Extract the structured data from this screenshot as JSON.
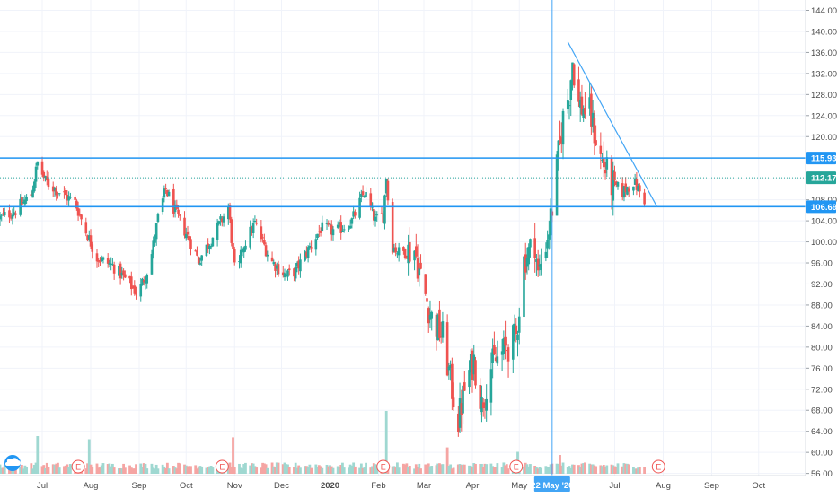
{
  "colors": {
    "up": "#26a69a",
    "down": "#ef5350",
    "volume_up": "#9fd8d1",
    "volume_down": "#f5a5a3",
    "level_line": "#2196f3",
    "trend_line": "#42a5f5",
    "crosshair": "#42a5f5",
    "last_price": "#26a69a",
    "axis_text": "#4a4a4a",
    "grid": "#f0f3fa",
    "earnings_marker": "#ef5350"
  },
  "chart_data": {
    "type": "candlestick",
    "y_axis": {
      "position": "right",
      "range": [
        54.5,
        146
      ],
      "ticks": [
        56,
        60,
        64,
        68,
        72,
        76,
        80,
        84,
        88,
        92,
        96,
        100,
        104,
        108,
        112,
        116,
        120,
        124,
        128,
        132,
        136,
        140,
        144
      ],
      "tick_labels": [
        "56.00",
        "60.00",
        "64.00",
        "68.00",
        "72.00",
        "76.00",
        "80.00",
        "84.00",
        "88.00",
        "92.00",
        "96.00",
        "100.00",
        "104.00",
        "108.00",
        "112.00",
        "116.00",
        "120.00",
        "124.00",
        "128.00",
        "132.00",
        "136.00",
        "140.00",
        "144.00"
      ]
    },
    "x_axis": {
      "range": [
        "2019-06-04",
        "2020-10-31"
      ],
      "ticks": [
        {
          "date": "2019-07-01",
          "label": "Jul"
        },
        {
          "date": "2019-08-01",
          "label": "Aug"
        },
        {
          "date": "2019-09-01",
          "label": "Sep"
        },
        {
          "date": "2019-10-01",
          "label": "Oct"
        },
        {
          "date": "2019-11-01",
          "label": "Nov"
        },
        {
          "date": "2019-12-01",
          "label": "Dec"
        },
        {
          "date": "2020-01-01",
          "label": "2020"
        },
        {
          "date": "2020-02-01",
          "label": "Feb"
        },
        {
          "date": "2020-03-01",
          "label": "Mar"
        },
        {
          "date": "2020-04-01",
          "label": "Apr"
        },
        {
          "date": "2020-05-01",
          "label": "May"
        },
        {
          "date": "2020-07-01",
          "label": "Jul"
        },
        {
          "date": "2020-08-01",
          "label": "Aug"
        },
        {
          "date": "2020-09-01",
          "label": "Sep"
        },
        {
          "date": "2020-10-01",
          "label": "Oct"
        }
      ]
    },
    "price_path": [
      [
        "2019-06-04",
        104.5
      ],
      [
        "2019-06-14",
        106.0
      ],
      [
        "2019-06-24",
        109.0
      ],
      [
        "2019-06-28",
        115.0
      ],
      [
        "2019-07-03",
        111.5
      ],
      [
        "2019-07-12",
        109.5
      ],
      [
        "2019-07-22",
        107.5
      ],
      [
        "2019-07-29",
        102.0
      ],
      [
        "2019-08-05",
        97.0
      ],
      [
        "2019-08-15",
        95.5
      ],
      [
        "2019-08-26",
        92.0
      ],
      [
        "2019-08-31",
        90.0
      ],
      [
        "2019-09-08",
        96.0
      ],
      [
        "2019-09-13",
        104.5
      ],
      [
        "2019-09-18",
        110.0
      ],
      [
        "2019-09-25",
        105.0
      ],
      [
        "2019-10-03",
        100.5
      ],
      [
        "2019-10-09",
        96.5
      ],
      [
        "2019-10-18",
        101.0
      ],
      [
        "2019-10-28",
        106.5
      ],
      [
        "2019-11-02",
        92.0
      ],
      [
        "2019-11-06",
        99.0
      ],
      [
        "2019-11-14",
        103.5
      ],
      [
        "2019-11-24",
        96.5
      ],
      [
        "2019-12-04",
        93.5
      ],
      [
        "2019-12-10",
        94.5
      ],
      [
        "2019-12-18",
        98.5
      ],
      [
        "2019-12-26",
        102.5
      ],
      [
        "2020-01-05",
        102.0
      ],
      [
        "2020-01-15",
        104.0
      ],
      [
        "2020-01-23",
        109.5
      ],
      [
        "2020-01-30",
        104.0
      ],
      [
        "2020-02-04",
        105.0
      ],
      [
        "2020-02-06",
        112.5
      ],
      [
        "2020-02-09",
        99.5
      ],
      [
        "2020-02-14",
        98.0
      ],
      [
        "2020-02-24",
        98.5
      ],
      [
        "2020-02-29",
        92.0
      ],
      [
        "2020-03-06",
        85.5
      ],
      [
        "2020-03-13",
        82.0
      ],
      [
        "2020-03-18",
        73.5
      ],
      [
        "2020-03-23",
        66.0
      ],
      [
        "2020-03-28",
        73.5
      ],
      [
        "2020-04-02",
        77.5
      ],
      [
        "2020-04-07",
        69.0
      ],
      [
        "2020-04-12",
        76.0
      ],
      [
        "2020-04-22",
        79.5
      ],
      [
        "2020-04-29",
        82.0
      ],
      [
        "2020-05-04",
        96.5
      ],
      [
        "2020-05-11",
        100.0
      ],
      [
        "2020-05-13",
        93.5
      ],
      [
        "2020-05-20",
        102.5
      ],
      [
        "2020-05-22",
        106.5
      ],
      [
        "2020-05-26",
        116.5
      ],
      [
        "2020-05-29",
        123.5
      ],
      [
        "2020-06-02",
        128.5
      ],
      [
        "2020-06-04",
        134.5
      ],
      [
        "2020-06-08",
        126.0
      ],
      [
        "2020-06-15",
        124.5
      ],
      [
        "2020-06-22",
        116.0
      ],
      [
        "2020-06-29",
        111.0
      ],
      [
        "2020-07-06",
        109.5
      ],
      [
        "2020-07-13",
        111.5
      ],
      [
        "2020-07-20",
        108.0
      ]
    ],
    "volume_scale_max": 100,
    "volume_spikes": [
      {
        "date": "2019-06-28",
        "value": 60
      },
      {
        "date": "2019-07-31",
        "value": 55
      },
      {
        "date": "2019-10-31",
        "value": 58
      },
      {
        "date": "2020-02-06",
        "value": 100
      },
      {
        "date": "2020-03-16",
        "value": 42
      },
      {
        "date": "2020-04-30",
        "value": 35
      },
      {
        "date": "2020-05-27",
        "value": 30
      }
    ],
    "horizontal_levels": [
      {
        "value": 115.93,
        "label": "115.93",
        "style": "solid"
      },
      {
        "value": 106.69,
        "label": "106.69",
        "style": "solid"
      },
      {
        "value": 112.17,
        "label": "112.17",
        "style": "dotted"
      }
    ],
    "trend_line": {
      "from": [
        "2020-06-01",
        138.0
      ],
      "to": [
        "2020-07-28",
        106.69
      ]
    },
    "crosshair": {
      "date": "2020-05-22",
      "label": "22 May '20"
    },
    "earnings_markers": [
      {
        "date": "2019-07-24",
        "label": "E"
      },
      {
        "date": "2019-10-24",
        "label": "E"
      },
      {
        "date": "2020-02-04",
        "label": "E"
      },
      {
        "date": "2020-04-29",
        "label": "E"
      },
      {
        "date": "2020-07-29",
        "label": "E"
      }
    ]
  }
}
